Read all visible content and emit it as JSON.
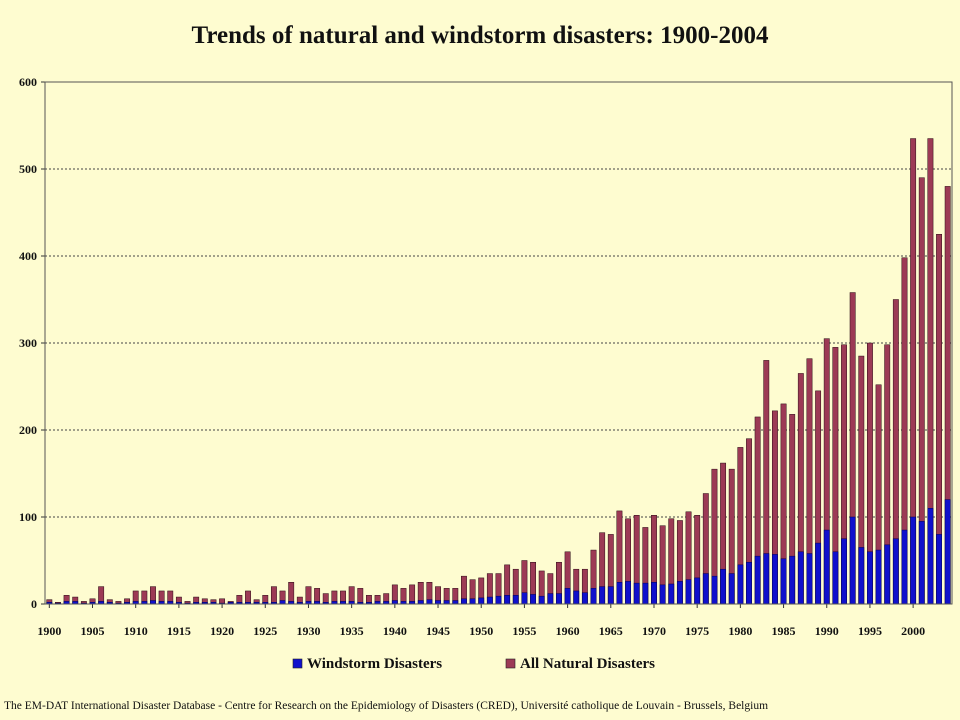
{
  "chart_data": {
    "type": "bar",
    "title": "Trends of natural and windstorm disasters: 1900-2004",
    "xlabel": "",
    "ylabel": "",
    "ylim": [
      0,
      600
    ],
    "yticks": [
      0,
      100,
      200,
      300,
      400,
      500,
      600
    ],
    "xtick_labels": [
      "1900",
      "1905",
      "1910",
      "1915",
      "1920",
      "1925",
      "1930",
      "1935",
      "1940",
      "1945",
      "1950",
      "1955",
      "1960",
      "1965",
      "1970",
      "1975",
      "1980",
      "1985",
      "1990",
      "1995",
      "2000"
    ],
    "grid": "horizontal dotted",
    "legend_position": "bottom-center",
    "categories": [
      1900,
      1901,
      1902,
      1903,
      1904,
      1905,
      1906,
      1907,
      1908,
      1909,
      1910,
      1911,
      1912,
      1913,
      1914,
      1915,
      1916,
      1917,
      1918,
      1919,
      1920,
      1921,
      1922,
      1923,
      1924,
      1925,
      1926,
      1927,
      1928,
      1929,
      1930,
      1931,
      1932,
      1933,
      1934,
      1935,
      1936,
      1937,
      1938,
      1939,
      1940,
      1941,
      1942,
      1943,
      1944,
      1945,
      1946,
      1947,
      1948,
      1949,
      1950,
      1951,
      1952,
      1953,
      1954,
      1955,
      1956,
      1957,
      1958,
      1959,
      1960,
      1961,
      1962,
      1963,
      1964,
      1965,
      1966,
      1967,
      1968,
      1969,
      1970,
      1971,
      1972,
      1973,
      1974,
      1975,
      1976,
      1977,
      1978,
      1979,
      1980,
      1981,
      1982,
      1983,
      1984,
      1985,
      1986,
      1987,
      1988,
      1989,
      1990,
      1991,
      1992,
      1993,
      1994,
      1995,
      1996,
      1997,
      1998,
      1999,
      2000,
      2001,
      2002,
      2003,
      2004
    ],
    "series": [
      {
        "name": "Windstorm Disasters",
        "color": "#1010cc",
        "values": [
          2,
          1,
          3,
          3,
          1,
          2,
          3,
          2,
          1,
          2,
          3,
          3,
          4,
          3,
          3,
          2,
          1,
          2,
          2,
          2,
          1,
          2,
          2,
          2,
          2,
          2,
          2,
          4,
          3,
          2,
          3,
          3,
          2,
          3,
          3,
          3,
          2,
          2,
          3,
          3,
          4,
          3,
          3,
          4,
          5,
          4,
          4,
          4,
          6,
          6,
          7,
          8,
          9,
          10,
          10,
          13,
          11,
          9,
          12,
          12,
          18,
          15,
          13,
          18,
          20,
          20,
          25,
          26,
          24,
          24,
          25,
          22,
          23,
          26,
          28,
          30,
          35,
          32,
          40,
          35,
          45,
          48,
          55,
          58,
          57,
          52,
          55,
          60,
          58,
          70,
          85,
          60,
          75,
          100,
          65,
          60,
          62,
          68,
          75,
          85,
          100,
          95,
          110,
          80,
          120
        ]
      },
      {
        "name": "All Natural Disasters",
        "color": "#9c3a55",
        "values": [
          5,
          2,
          10,
          8,
          3,
          6,
          20,
          5,
          3,
          6,
          15,
          15,
          20,
          15,
          15,
          8,
          3,
          8,
          6,
          5,
          6,
          3,
          10,
          15,
          5,
          10,
          20,
          15,
          25,
          8,
          20,
          18,
          12,
          15,
          15,
          20,
          18,
          10,
          10,
          12,
          22,
          18,
          22,
          25,
          25,
          20,
          18,
          18,
          32,
          28,
          30,
          35,
          35,
          45,
          40,
          50,
          48,
          38,
          35,
          48,
          60,
          40,
          40,
          62,
          82,
          80,
          107,
          98,
          102,
          88,
          102,
          90,
          98,
          96,
          106,
          102,
          127,
          155,
          162,
          155,
          180,
          190,
          215,
          280,
          222,
          230,
          218,
          265,
          282,
          245,
          305,
          295,
          298,
          358,
          285,
          300,
          252,
          298,
          350,
          398,
          535,
          490,
          535,
          425,
          480
        ]
      }
    ]
  },
  "legend": [
    "Windstorm Disasters",
    "All Natural Disasters"
  ],
  "source": "The EM-DAT International Disaster Database - Centre for Research on the Epidemiology of Disasters (CRED), Université catholique de Louvain - Brussels, Belgium"
}
